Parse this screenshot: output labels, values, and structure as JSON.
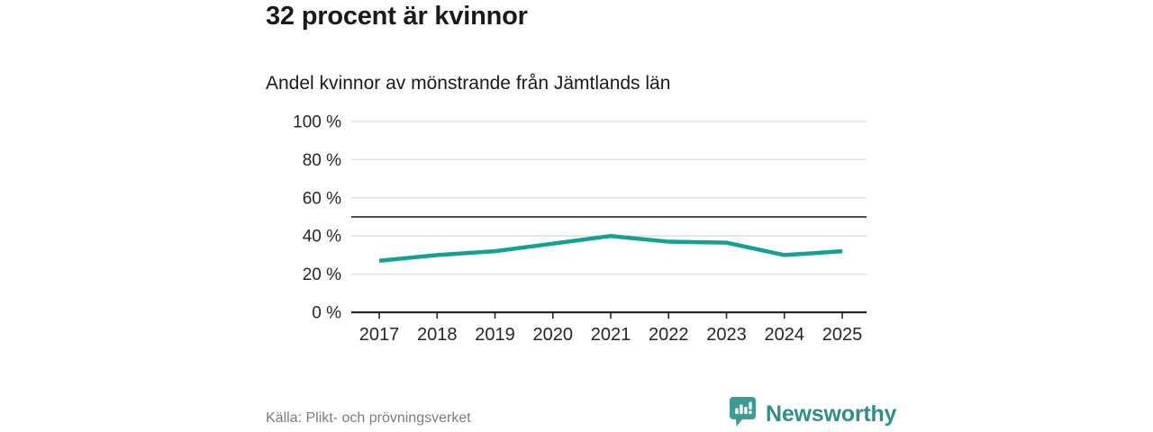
{
  "header": {
    "title": "32 procent är kvinnor",
    "subtitle": "Andel kvinnor av mönstrande från Jämtlands län"
  },
  "chart_data": {
    "type": "line",
    "title": "Andel kvinnor av mönstrande från Jämtlands län",
    "x": [
      2017,
      2018,
      2019,
      2020,
      2021,
      2022,
      2023,
      2024,
      2025
    ],
    "series": [
      {
        "name": "Andel kvinnor",
        "values": [
          27,
          30,
          32,
          36,
          40,
          37,
          36.5,
          30,
          32
        ]
      }
    ],
    "xlabel": "",
    "ylabel": "",
    "ylim": [
      0,
      100
    ],
    "yticks": [
      0,
      20,
      40,
      60,
      80,
      100
    ],
    "ytick_labels": [
      "0 %",
      "20 %",
      "40 %",
      "60 %",
      "80 %",
      "100 %"
    ],
    "reference_line": 50,
    "grid": true,
    "legend_position": "none",
    "colors": {
      "line": "#14a193",
      "grid": "#dcdcdc",
      "reference": "#4d4d4d",
      "axis": "#262626",
      "tick_text": "#262626"
    }
  },
  "footer": {
    "source": "Källa: Plikt- och prövningsverket",
    "brand": "Newsworthy",
    "brand_color": "#2f8f88",
    "brand_icon_color": "#3d9c92",
    "brand_icon": "newsworthy-chart-bubble-icon"
  }
}
